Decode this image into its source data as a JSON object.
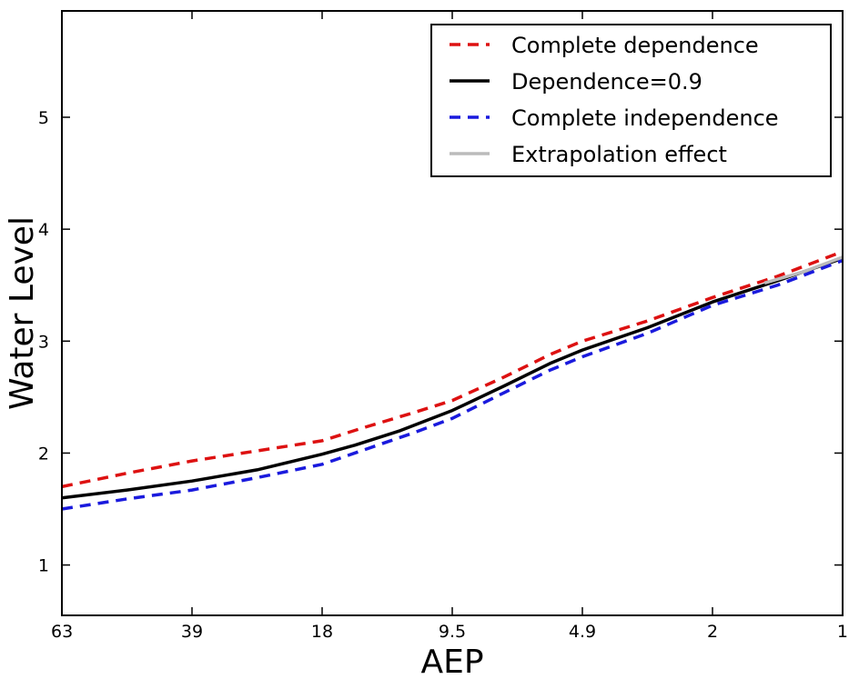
{
  "chart_data": {
    "type": "line",
    "xlabel": "AEP",
    "ylabel": "Water Level",
    "categories": [
      "63",
      "39",
      "18",
      "9.5",
      "4.9",
      "2",
      "1"
    ],
    "ylim": [
      0.55,
      5.95
    ],
    "yticks": [
      1,
      2,
      3,
      4,
      5
    ],
    "grid": false,
    "legend_position": "top-right",
    "series": [
      {
        "name": "Complete dependence",
        "color": "#dd1111",
        "dash": "dashed",
        "points": [
          [
            0,
            1.7
          ],
          [
            0.5,
            1.82
          ],
          [
            1,
            1.93
          ],
          [
            1.5,
            2.02
          ],
          [
            2,
            2.11
          ],
          [
            2.3,
            2.22
          ],
          [
            2.7,
            2.36
          ],
          [
            3,
            2.47
          ],
          [
            3.4,
            2.68
          ],
          [
            3.75,
            2.88
          ],
          [
            4,
            3.0
          ],
          [
            4.5,
            3.18
          ],
          [
            5,
            3.39
          ],
          [
            5.5,
            3.58
          ],
          [
            6,
            3.8
          ]
        ]
      },
      {
        "name": "Dependence=0.9",
        "color": "#000000",
        "dash": "solid",
        "points": [
          [
            0,
            1.6
          ],
          [
            0.5,
            1.67
          ],
          [
            1,
            1.75
          ],
          [
            1.5,
            1.85
          ],
          [
            2,
            1.99
          ],
          [
            2.25,
            2.07
          ],
          [
            2.6,
            2.2
          ],
          [
            3,
            2.38
          ],
          [
            3.4,
            2.6
          ],
          [
            3.75,
            2.8
          ],
          [
            4,
            2.92
          ],
          [
            4.5,
            3.12
          ],
          [
            5,
            3.35
          ],
          [
            5.5,
            3.54
          ],
          [
            6,
            3.74
          ]
        ]
      },
      {
        "name": "Complete independence",
        "color": "#1a1add",
        "dash": "dashed",
        "points": [
          [
            0,
            1.5
          ],
          [
            0.5,
            1.59
          ],
          [
            1,
            1.67
          ],
          [
            1.5,
            1.78
          ],
          [
            2,
            1.9
          ],
          [
            2.3,
            2.02
          ],
          [
            2.7,
            2.18
          ],
          [
            3,
            2.31
          ],
          [
            3.4,
            2.54
          ],
          [
            3.75,
            2.74
          ],
          [
            4,
            2.86
          ],
          [
            4.5,
            3.07
          ],
          [
            5,
            3.32
          ],
          [
            5.5,
            3.5
          ],
          [
            6,
            3.72
          ]
        ]
      },
      {
        "name": "Extrapolation effect",
        "color": "#bbbbbb",
        "dash": "solid",
        "points": [
          [
            5.4,
            3.52
          ],
          [
            5.7,
            3.62
          ],
          [
            6,
            3.75
          ]
        ]
      }
    ]
  }
}
